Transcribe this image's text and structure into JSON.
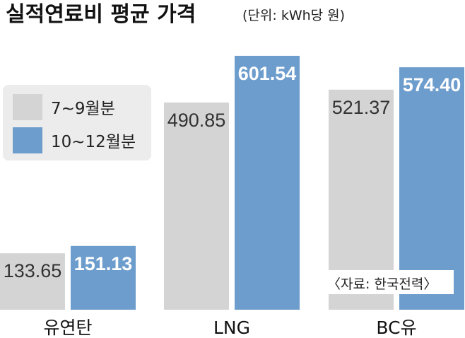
{
  "chart_data": {
    "type": "bar",
    "title": "실적연료비 평균 가격",
    "unit_note": "(단위: kWh당 원)",
    "categories": [
      "유연탄",
      "LNG",
      "BC유"
    ],
    "series": [
      {
        "name": "7~9월분",
        "values": [
          133.65,
          490.85,
          521.37
        ],
        "value_labels": [
          "133.65",
          "490.85",
          "521.37"
        ],
        "color": "#d4d4d4"
      },
      {
        "name": "10~12월분",
        "values": [
          151.13,
          601.54,
          574.4
        ],
        "value_labels": [
          "151.13",
          "601.54",
          "574.40"
        ],
        "color": "#6d9dcc"
      }
    ],
    "ylim": [
      0,
      650
    ],
    "legend_placement": "top-left",
    "grid": false,
    "source": "〈자료: 한국전력〉",
    "colors": {
      "value_text_light_bar": "#333333",
      "value_text_dark_bar": "#ffffff",
      "legend_panel": "#ececec"
    }
  }
}
